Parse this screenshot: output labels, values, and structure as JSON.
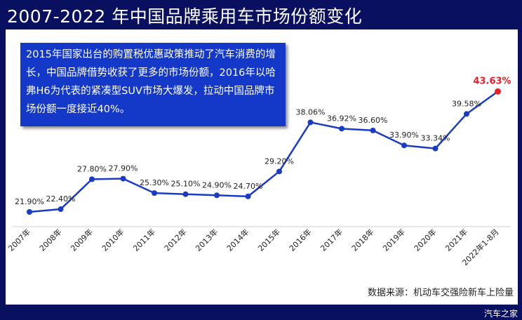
{
  "title": "2007-2022 年中国品牌乘用车市场份额变化",
  "note": "2015年国家出台的购置税优惠政策推动了汽车消费的增长，中国品牌借势收获了更多的市场份额，2016年以哈弗H6为代表的紧凑型SUV市场大爆发，拉动中国品牌市场份额一度接近40%。",
  "source": "数据来源：机动车交强险新车上险量",
  "watermark": "汽车之家",
  "colors": {
    "line": "#1a3cc4",
    "highlight": "#e8202a",
    "background": "#0a1060",
    "note_bg": "#1438c8"
  },
  "chart_data": {
    "type": "line",
    "categories": [
      "2007年",
      "2008年",
      "2009年",
      "2010年",
      "2011年",
      "2012年",
      "2013年",
      "2014年",
      "2015年",
      "2016年",
      "2017年",
      "2018年",
      "2019年",
      "2020年",
      "2021年",
      "2022年1-8月"
    ],
    "values": [
      21.9,
      22.4,
      27.8,
      27.9,
      25.3,
      25.1,
      24.9,
      24.7,
      29.2,
      38.06,
      36.92,
      36.6,
      33.9,
      33.34,
      39.58,
      43.63
    ],
    "data_labels": [
      "21.90%",
      "22.40%",
      "27.80%",
      "27.90%",
      "25.30%",
      "25.10%",
      "24.90%",
      "24.70%",
      "29.20%",
      "38.06%",
      "36.92%",
      "36.60%",
      "33.90%",
      "33.34%",
      "39.58%",
      "43.63%"
    ],
    "highlight_index": 15,
    "ylim": [
      18,
      45
    ],
    "grid": false
  }
}
